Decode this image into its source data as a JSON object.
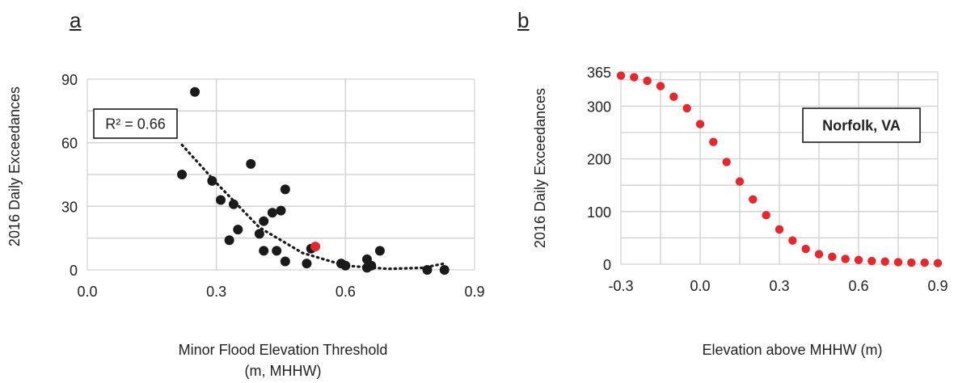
{
  "panels": {
    "a": "a",
    "b": "b"
  },
  "chart_data": [
    {
      "type": "scatter",
      "panel": "a",
      "xlabel": "Minor Flood Elevation Threshold (m, MHHW)",
      "xlabel_lines": [
        "Minor Flood Elevation Threshold",
        "(m, MHHW)"
      ],
      "ylabel": "2016 Daily Exceedances",
      "xlim": [
        0,
        0.9
      ],
      "ylim": [
        0,
        90
      ],
      "xticks": [
        0.0,
        0.3,
        0.6,
        0.9
      ],
      "xtick_labels": [
        "0.0",
        "0.3",
        "0.6",
        "0.9"
      ],
      "yticks": [
        0,
        30,
        60,
        90
      ],
      "ytick_labels": [
        "0",
        "30",
        "60",
        "90"
      ],
      "grid": true,
      "annotation": "R² = 0.66",
      "series": [
        {
          "marker_color": "#1a1a1a",
          "points": [
            [
              0.22,
              45
            ],
            [
              0.25,
              84
            ],
            [
              0.29,
              42
            ],
            [
              0.31,
              33
            ],
            [
              0.33,
              14
            ],
            [
              0.34,
              31
            ],
            [
              0.35,
              19
            ],
            [
              0.38,
              50
            ],
            [
              0.4,
              17
            ],
            [
              0.41,
              9
            ],
            [
              0.41,
              23
            ],
            [
              0.43,
              27
            ],
            [
              0.44,
              9
            ],
            [
              0.45,
              28
            ],
            [
              0.46,
              38
            ],
            [
              0.46,
              4
            ],
            [
              0.51,
              3
            ],
            [
              0.52,
              10
            ],
            [
              0.59,
              3
            ],
            [
              0.6,
              2
            ],
            [
              0.65,
              5
            ],
            [
              0.65,
              1
            ],
            [
              0.66,
              2
            ],
            [
              0.68,
              9
            ],
            [
              0.79,
              0
            ],
            [
              0.83,
              0
            ]
          ]
        },
        {
          "marker_color": "#e8262b",
          "points": [
            [
              0.53,
              11
            ]
          ]
        }
      ],
      "trendline": {
        "style": "dotted",
        "color": "#1a1a1a",
        "points": [
          [
            0.22,
            59
          ],
          [
            0.3,
            41
          ],
          [
            0.4,
            20
          ],
          [
            0.5,
            8
          ],
          [
            0.6,
            2
          ],
          [
            0.7,
            0.5
          ],
          [
            0.78,
            1
          ],
          [
            0.83,
            3
          ]
        ]
      }
    },
    {
      "type": "scatter",
      "panel": "b",
      "xlabel": "Elevation above MHHW (m)",
      "ylabel": "2016 Daily Exceedances",
      "xlim": [
        -0.3,
        0.9
      ],
      "ylim": [
        0,
        365
      ],
      "xticks": [
        -0.3,
        0.0,
        0.3,
        0.6,
        0.9
      ],
      "xtick_labels": [
        "-0.3",
        "0.0",
        "0.3",
        "0.6",
        "0.9"
      ],
      "yticks": [
        0,
        100,
        200,
        300,
        365
      ],
      "ytick_labels": [
        "0",
        "100",
        "200",
        "300",
        "365"
      ],
      "grid": true,
      "annotation": "Norfolk, VA",
      "series": [
        {
          "marker_color": "#e8262b",
          "points": [
            [
              -0.3,
              358
            ],
            [
              -0.25,
              355
            ],
            [
              -0.2,
              348
            ],
            [
              -0.15,
              338
            ],
            [
              -0.1,
              318
            ],
            [
              -0.05,
              296
            ],
            [
              0.0,
              266
            ],
            [
              0.05,
              232
            ],
            [
              0.1,
              194
            ],
            [
              0.15,
              157
            ],
            [
              0.2,
              123
            ],
            [
              0.25,
              93
            ],
            [
              0.3,
              66
            ],
            [
              0.35,
              45
            ],
            [
              0.4,
              29
            ],
            [
              0.45,
              19
            ],
            [
              0.5,
              14
            ],
            [
              0.55,
              10
            ],
            [
              0.6,
              8
            ],
            [
              0.65,
              6
            ],
            [
              0.7,
              5
            ],
            [
              0.75,
              4
            ],
            [
              0.8,
              3
            ],
            [
              0.85,
              3
            ],
            [
              0.9,
              2
            ]
          ]
        }
      ]
    }
  ]
}
